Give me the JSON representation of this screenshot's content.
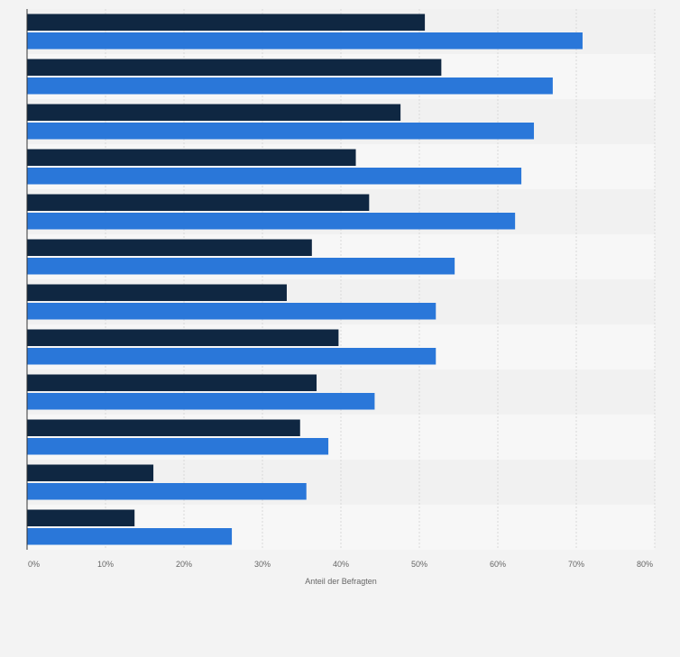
{
  "chart_data": {
    "type": "bar",
    "orientation": "horizontal",
    "categories": [
      "",
      "",
      "",
      "",
      "",
      "",
      "",
      "",
      "",
      "",
      "",
      ""
    ],
    "series": [
      {
        "values": [
          50.7,
          52.8,
          47.6,
          41.9,
          43.6,
          36.3,
          33.1,
          39.7,
          36.9,
          34.8,
          16.1,
          13.7
        ]
      },
      {
        "values": [
          70.8,
          67.0,
          64.6,
          63.0,
          62.2,
          54.5,
          52.1,
          52.1,
          44.3,
          38.4,
          35.6,
          26.1
        ]
      }
    ],
    "colors": [
      "#0f2742",
      "#2a77d9"
    ],
    "xlim": [
      0,
      80
    ],
    "xticks": [
      "0%",
      "10%",
      "20%",
      "30%",
      "40%",
      "50%",
      "60%",
      "70%",
      "80%"
    ],
    "xlabel": "Anteil der Befragten",
    "grid": true,
    "legend": "none"
  }
}
